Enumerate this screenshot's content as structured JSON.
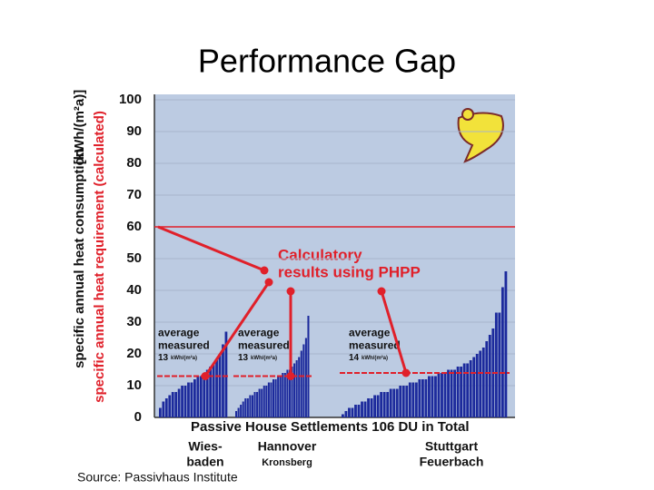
{
  "chart_data": {
    "type": "bar",
    "title": "Performance Gap",
    "y_label_consumption": "specific annual heat consumption",
    "y_label_unit": "[kWh/(m²a)]",
    "y_label_requirement": "specific annual heat requirement (calculated)",
    "ylim": [
      0,
      100
    ],
    "yticks": [
      0,
      10,
      20,
      30,
      40,
      50,
      60,
      70,
      80,
      90,
      100
    ],
    "calculated": 60,
    "calculated_color": "#e0202a",
    "bar_color": "#1c2a9c",
    "background": "#bccbe2",
    "callout": [
      "Calculatory",
      "results using PHPP"
    ],
    "footer": "Passive House Settlements 106 DU in Total",
    "source": "Source: Passivhaus Institute",
    "groups": [
      {
        "label_lines": [
          "Wies-",
          "baden"
        ],
        "avg_text": [
          "average",
          "measured"
        ],
        "avg": 13,
        "avg_unit": "kWh/(m²a)",
        "values": [
          3,
          5,
          6,
          7,
          8,
          8,
          9,
          10,
          10,
          11,
          11,
          12,
          13,
          13,
          14,
          15,
          16,
          17,
          18,
          20,
          23,
          27
        ]
      },
      {
        "label_lines": [
          "Hannover",
          "Kronsberg"
        ],
        "avg_text": [
          "average",
          "measured"
        ],
        "avg": 13,
        "avg_unit": "kWh/(m²a)",
        "values": [
          2,
          3,
          4,
          5,
          6,
          6,
          7,
          7,
          8,
          8,
          9,
          9,
          10,
          10,
          11,
          11,
          12,
          12,
          13,
          13,
          14,
          14,
          15,
          15,
          16,
          17,
          18,
          19,
          21,
          23,
          25,
          32
        ]
      },
      {
        "label_lines": [
          "Stuttgart",
          "Feuerbach"
        ],
        "avg_text": [
          "average",
          "measured"
        ],
        "avg": 14,
        "avg_unit": "kWh/(m²a)",
        "values": [
          1,
          2,
          3,
          3,
          4,
          4,
          5,
          5,
          6,
          6,
          7,
          7,
          8,
          8,
          8,
          9,
          9,
          9,
          10,
          10,
          10,
          11,
          11,
          11,
          12,
          12,
          12,
          13,
          13,
          13,
          14,
          14,
          14,
          15,
          15,
          15,
          16,
          16,
          17,
          17,
          18,
          19,
          20,
          21,
          22,
          24,
          26,
          28,
          33,
          33,
          41,
          46
        ]
      }
    ]
  }
}
